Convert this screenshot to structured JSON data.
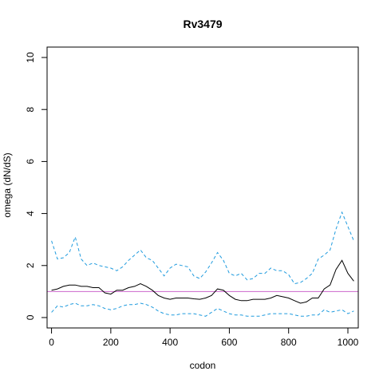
{
  "chart_data": {
    "type": "line",
    "title": "Rv3479",
    "xlabel": "codon",
    "ylabel": "omega (dN/dS)",
    "xlim": [
      -15,
      1035
    ],
    "ylim": [
      -0.4,
      10.4
    ],
    "xticks": [
      0,
      200,
      400,
      600,
      800,
      1000
    ],
    "yticks": [
      0,
      2,
      4,
      6,
      8,
      10
    ],
    "reference_line": {
      "y": 1,
      "color": "#cc66cc"
    },
    "grid": false,
    "legend": "none",
    "x": [
      0,
      20,
      40,
      60,
      80,
      100,
      120,
      140,
      160,
      180,
      200,
      220,
      240,
      260,
      280,
      300,
      320,
      340,
      360,
      380,
      400,
      420,
      440,
      460,
      480,
      500,
      520,
      540,
      560,
      580,
      600,
      620,
      640,
      660,
      680,
      700,
      720,
      740,
      760,
      780,
      800,
      820,
      840,
      860,
      880,
      900,
      920,
      940,
      960,
      980,
      1000,
      1020
    ],
    "series": [
      {
        "style": "solid",
        "color": "#000000",
        "values": [
          1.05,
          1.1,
          1.2,
          1.25,
          1.25,
          1.2,
          1.2,
          1.15,
          1.15,
          0.95,
          0.9,
          1.05,
          1.05,
          1.15,
          1.2,
          1.3,
          1.2,
          1.05,
          0.85,
          0.75,
          0.7,
          0.75,
          0.75,
          0.75,
          0.72,
          0.7,
          0.75,
          0.85,
          1.1,
          1.05,
          0.85,
          0.7,
          0.65,
          0.65,
          0.7,
          0.7,
          0.7,
          0.75,
          0.85,
          0.8,
          0.75,
          0.65,
          0.55,
          0.6,
          0.75,
          0.75,
          1.1,
          1.25,
          1.85,
          2.2,
          1.7,
          1.4
        ]
      },
      {
        "style": "dashed",
        "color": "#1f9bde",
        "values": [
          2.95,
          2.25,
          2.3,
          2.5,
          3.1,
          2.25,
          2.0,
          2.1,
          2.0,
          1.95,
          1.9,
          1.8,
          1.95,
          2.2,
          2.4,
          2.6,
          2.3,
          2.2,
          1.9,
          1.6,
          1.9,
          2.05,
          2.0,
          1.95,
          1.6,
          1.5,
          1.75,
          2.1,
          2.5,
          2.2,
          1.7,
          1.6,
          1.7,
          1.45,
          1.5,
          1.7,
          1.7,
          1.9,
          1.8,
          1.8,
          1.65,
          1.3,
          1.35,
          1.5,
          1.7,
          2.25,
          2.4,
          2.6,
          3.4,
          4.05,
          3.5,
          2.95
        ]
      },
      {
        "style": "dashed",
        "color": "#1f9bde",
        "values": [
          0.2,
          0.45,
          0.4,
          0.5,
          0.55,
          0.45,
          0.45,
          0.5,
          0.45,
          0.35,
          0.3,
          0.35,
          0.45,
          0.5,
          0.5,
          0.55,
          0.5,
          0.4,
          0.25,
          0.15,
          0.1,
          0.1,
          0.15,
          0.15,
          0.15,
          0.1,
          0.05,
          0.2,
          0.35,
          0.25,
          0.15,
          0.1,
          0.1,
          0.05,
          0.05,
          0.05,
          0.1,
          0.15,
          0.15,
          0.15,
          0.15,
          0.1,
          0.05,
          0.05,
          0.1,
          0.1,
          0.3,
          0.2,
          0.25,
          0.3,
          0.15,
          0.25
        ]
      }
    ]
  }
}
